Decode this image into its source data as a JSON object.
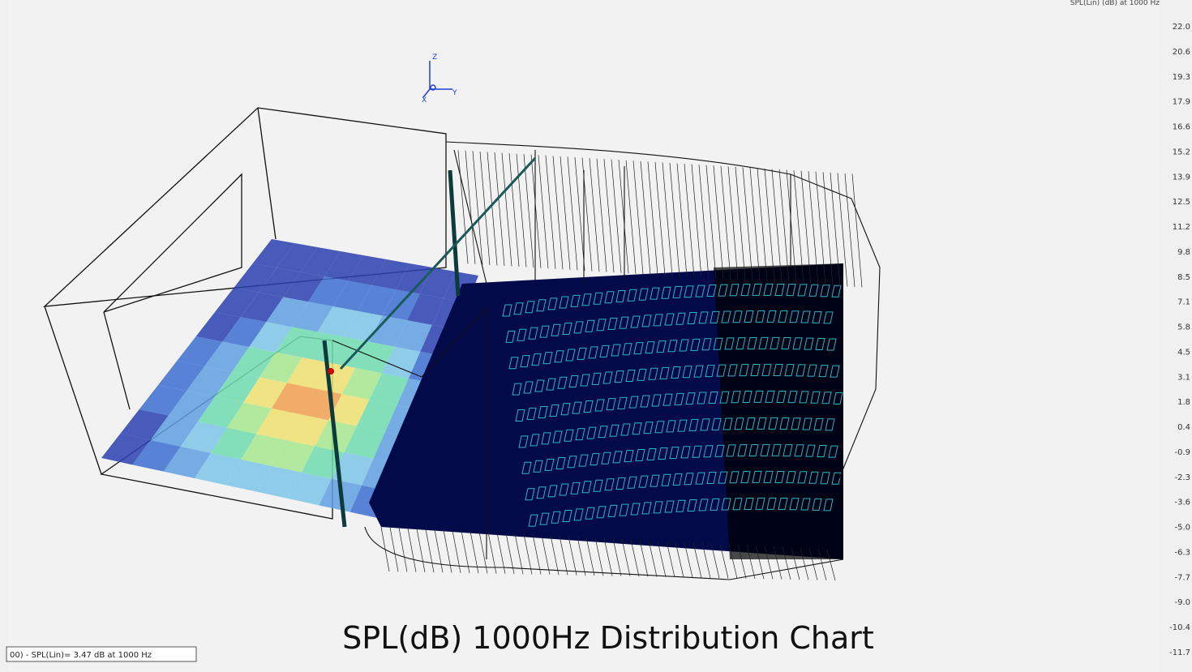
{
  "caption": "SPL(dB) 1000Hz Distribution Chart",
  "legend": {
    "title": "SPL(Lin)  (dB) at 1000 Hz",
    "ticks": [
      "22.0",
      "20.6",
      "19.3",
      "17.9",
      "16.6",
      "15.2",
      "13.9",
      "12.5",
      "11.2",
      "9.8",
      "8.5",
      "7.1",
      "5.8",
      "4.5",
      "3.1",
      "1.8",
      "0.4",
      "-0.9",
      "-2.3",
      "-3.6",
      "-5.0",
      "-6.3",
      "-7.7",
      "-9.0",
      "-10.4",
      "-11.7"
    ]
  },
  "status": "00) - SPL(Lin)=   3.47 dB at 1000 Hz",
  "axes": {
    "z": "Z",
    "x": "X",
    "y": "Y"
  }
}
